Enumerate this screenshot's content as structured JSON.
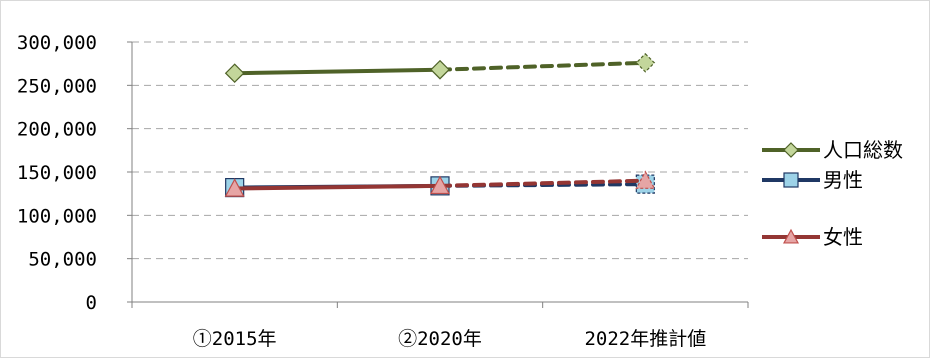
{
  "chart_data": {
    "type": "line",
    "categories": [
      "①2015年",
      "②2020年",
      "2022年推計値"
    ],
    "ylim": [
      0,
      300000
    ],
    "y_ticks": [
      0,
      50000,
      100000,
      150000,
      200000,
      250000,
      300000
    ],
    "y_tick_labels": [
      "0",
      "50,000",
      "100,000",
      "150,000",
      "200,000",
      "250,000",
      "300,000"
    ],
    "grid": true,
    "legend_position": "right",
    "series": [
      {
        "name": "人口総数",
        "values": [
          264000,
          268000,
          276000
        ],
        "color": "#4f6228",
        "marker": "diamond",
        "marker_fill": "#c3d69b",
        "projected_from_index": 1
      },
      {
        "name": "男性",
        "values": [
          132000,
          134000,
          136000
        ],
        "color": "#1f3864",
        "marker": "square",
        "marker_fill": "#9dd3e8",
        "projected_from_index": 1
      },
      {
        "name": "女性",
        "values": [
          131000,
          134000,
          140000
        ],
        "color": "#943634",
        "marker": "triangle",
        "marker_fill": "#e6a5a5",
        "projected_from_index": 1
      }
    ]
  }
}
